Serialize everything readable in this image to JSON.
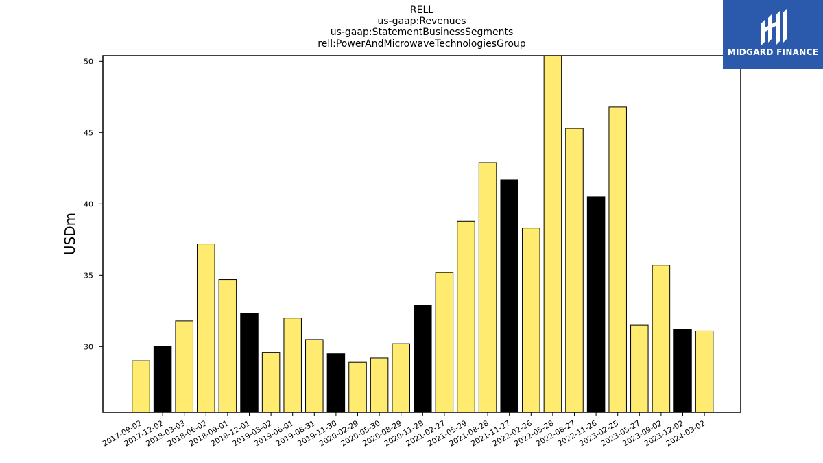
{
  "chart_data": {
    "type": "bar",
    "title_lines": [
      "RELL",
      "us-gaap:Revenues",
      "us-gaap:StatementBusinessSegments",
      "rell:PowerAndMicrowaveTechnologiesGroup"
    ],
    "xlabel": "",
    "ylabel": "USDm",
    "ylim": [
      25.4,
      50.4
    ],
    "yticks": [
      30,
      35,
      40,
      45,
      50
    ],
    "grid": false,
    "categories": [
      "2017-09-02",
      "2017-12-02",
      "2018-03-03",
      "2018-06-02",
      "2018-09-01",
      "2018-12-01",
      "2019-03-02",
      "2019-06-01",
      "2019-08-31",
      "2019-11-30",
      "2020-02-29",
      "2020-05-30",
      "2020-08-29",
      "2020-11-28",
      "2021-02-27",
      "2021-05-29",
      "2021-08-28",
      "2021-11-27",
      "2022-02-26",
      "2022-05-28",
      "2022-08-27",
      "2022-11-26",
      "2023-02-25",
      "2023-05-27",
      "2023-09-02",
      "2023-12-02",
      "2024-03-02"
    ],
    "values": [
      29.0,
      30.0,
      31.8,
      37.2,
      34.7,
      32.3,
      29.6,
      32.0,
      30.5,
      29.5,
      28.9,
      29.2,
      30.2,
      32.9,
      35.2,
      38.8,
      42.9,
      41.7,
      38.3,
      50.4,
      45.3,
      40.5,
      46.8,
      31.5,
      35.7,
      31.2,
      31.1
    ],
    "colors": [
      "#ffeb70",
      "#000000",
      "#ffeb70",
      "#ffeb70",
      "#ffeb70",
      "#000000",
      "#ffeb70",
      "#ffeb70",
      "#ffeb70",
      "#000000",
      "#ffeb70",
      "#ffeb70",
      "#ffeb70",
      "#000000",
      "#ffeb70",
      "#ffeb70",
      "#ffeb70",
      "#000000",
      "#ffeb70",
      "#ffeb70",
      "#ffeb70",
      "#000000",
      "#ffeb70",
      "#ffeb70",
      "#ffeb70",
      "#000000",
      "#ffeb70"
    ]
  },
  "logo": {
    "text": "MIDGARD FINANCE",
    "background": "#2b5aad"
  }
}
